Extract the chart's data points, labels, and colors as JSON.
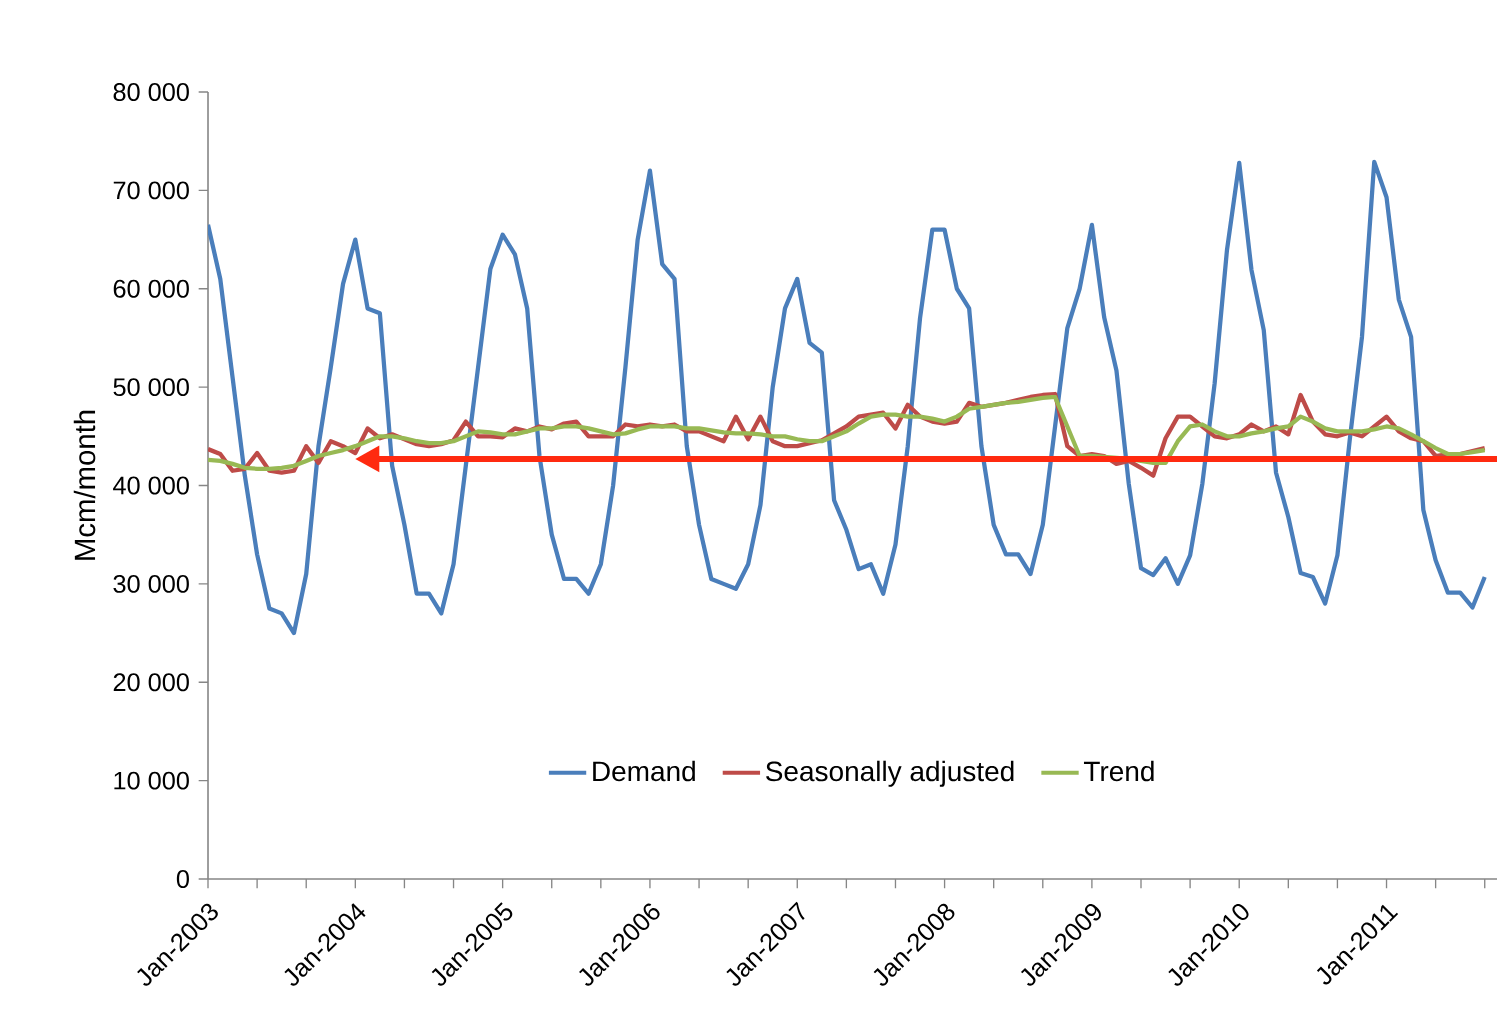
{
  "chart_data": {
    "type": "line",
    "ylabel": "Mcm/month",
    "x": [
      "2003-01",
      "2003-02",
      "2003-03",
      "2003-04",
      "2003-05",
      "2003-06",
      "2003-07",
      "2003-08",
      "2003-09",
      "2003-10",
      "2003-11",
      "2003-12",
      "2004-01",
      "2004-02",
      "2004-03",
      "2004-04",
      "2004-05",
      "2004-06",
      "2004-07",
      "2004-08",
      "2004-09",
      "2004-10",
      "2004-11",
      "2004-12",
      "2005-01",
      "2005-02",
      "2005-03",
      "2005-04",
      "2005-05",
      "2005-06",
      "2005-07",
      "2005-08",
      "2005-09",
      "2005-10",
      "2005-11",
      "2005-12",
      "2006-01",
      "2006-02",
      "2006-03",
      "2006-04",
      "2006-05",
      "2006-06",
      "2006-07",
      "2006-08",
      "2006-09",
      "2006-10",
      "2006-11",
      "2006-12",
      "2007-01",
      "2007-02",
      "2007-03",
      "2007-04",
      "2007-05",
      "2007-06",
      "2007-07",
      "2007-08",
      "2007-09",
      "2007-10",
      "2007-11",
      "2007-12",
      "2008-01",
      "2008-02",
      "2008-03",
      "2008-04",
      "2008-05",
      "2008-06",
      "2008-07",
      "2008-08",
      "2008-09",
      "2008-10",
      "2008-11",
      "2008-12",
      "2009-01",
      "2009-02",
      "2009-03",
      "2009-04",
      "2009-05",
      "2009-06",
      "2009-07",
      "2009-08",
      "2009-09",
      "2009-10",
      "2009-11",
      "2009-12",
      "2010-01",
      "2010-02",
      "2010-03",
      "2010-04",
      "2010-05",
      "2010-06",
      "2010-07",
      "2010-08",
      "2010-09",
      "2010-10",
      "2010-11",
      "2010-12",
      "2011-01",
      "2011-02",
      "2011-03",
      "2011-04",
      "2011-05",
      "2011-06",
      "2011-07",
      "2011-08",
      "2011-09"
    ],
    "series": [
      {
        "name": "Demand",
        "color": "#4a7ebb",
        "values": [
          66500,
          61000,
          51000,
          41000,
          33000,
          27500,
          27000,
          25000,
          31000,
          44000,
          52000,
          60500,
          65000,
          58000,
          57500,
          42000,
          36000,
          29000,
          29000,
          27000,
          32000,
          42000,
          52000,
          62000,
          65500,
          63500,
          58000,
          43000,
          35000,
          30500,
          30500,
          29000,
          32000,
          40000,
          52000,
          65000,
          72000,
          62500,
          61000,
          44000,
          36000,
          30500,
          30000,
          29500,
          32000,
          38000,
          50000,
          58000,
          61000,
          54500,
          53500,
          38500,
          35500,
          31500,
          32000,
          29000,
          34000,
          44000,
          57000,
          66000,
          66000,
          60000,
          58000,
          44000,
          36000,
          33000,
          33000,
          31000,
          36000,
          46000,
          56000,
          60000,
          66500,
          57100,
          51700,
          40200,
          31600,
          30900,
          32600,
          30000,
          32900,
          40200,
          50400,
          63900,
          72800,
          61900,
          55800,
          41300,
          36800,
          31100,
          30700,
          28000,
          32900,
          44600,
          55100,
          72900,
          69300,
          58900,
          55100,
          37500,
          32400,
          29100,
          29100,
          27600,
          30700
        ]
      },
      {
        "name": "Seasonally adjusted",
        "color": "#be4b48",
        "values": [
          43700,
          43200,
          41500,
          41700,
          43300,
          41500,
          41300,
          41500,
          44000,
          42300,
          44500,
          44000,
          43300,
          45800,
          44800,
          45200,
          44700,
          44200,
          44000,
          44200,
          44600,
          46500,
          45000,
          45000,
          44900,
          45800,
          45500,
          46000,
          45700,
          46300,
          46500,
          45000,
          45000,
          45000,
          46200,
          46000,
          46200,
          46000,
          46200,
          45500,
          45500,
          45000,
          44500,
          47000,
          44700,
          47000,
          44500,
          44000,
          44000,
          44300,
          44600,
          45300,
          46000,
          47000,
          47200,
          47400,
          45800,
          48200,
          47000,
          46500,
          46300,
          46500,
          48400,
          48000,
          48200,
          48400,
          48700,
          49000,
          49200,
          49300,
          44000,
          43000,
          43200,
          43000,
          42200,
          42500,
          41800,
          41000,
          44800,
          47000,
          47000,
          46000,
          45000,
          44800,
          45200,
          46200,
          45500,
          46000,
          45200,
          49200,
          46500,
          45200,
          45000,
          45400,
          45000,
          46000,
          47000,
          45500,
          44800,
          44500,
          43000,
          43200,
          43200,
          43500,
          43800
        ]
      },
      {
        "name": "Trend",
        "color": "#98b954",
        "values": [
          42600,
          42500,
          42200,
          41800,
          41700,
          41700,
          41800,
          42000,
          42500,
          43000,
          43300,
          43600,
          44000,
          44500,
          45000,
          45000,
          44800,
          44500,
          44300,
          44300,
          44500,
          45000,
          45500,
          45400,
          45200,
          45200,
          45500,
          45800,
          45800,
          46000,
          46000,
          45800,
          45500,
          45200,
          45300,
          45700,
          46000,
          46000,
          46000,
          45800,
          45800,
          45600,
          45400,
          45300,
          45300,
          45200,
          45000,
          45000,
          44700,
          44500,
          44500,
          45000,
          45500,
          46300,
          47000,
          47200,
          47200,
          47000,
          47000,
          46800,
          46500,
          47000,
          47800,
          48000,
          48200,
          48400,
          48500,
          48700,
          48900,
          49000,
          46000,
          43000,
          43000,
          42900,
          42800,
          42700,
          42500,
          42300,
          42300,
          44500,
          46000,
          46200,
          45500,
          45000,
          45000,
          45300,
          45500,
          45800,
          46000,
          47000,
          46500,
          45800,
          45500,
          45500,
          45500,
          45700,
          46000,
          45800,
          45200,
          44500,
          43800,
          43200,
          43200,
          43400,
          43600
        ]
      }
    ],
    "xlim": [
      "2003-01",
      "2011-10"
    ],
    "xticks": [
      {
        "value": "2003-01",
        "label": "Jan-2003"
      },
      {
        "value": "2003-05",
        "label": null
      },
      {
        "value": "2003-09",
        "label": null
      },
      {
        "value": "2004-01",
        "label": "Jan-2004"
      },
      {
        "value": "2004-05",
        "label": null
      },
      {
        "value": "2004-09",
        "label": null
      },
      {
        "value": "2005-01",
        "label": "Jan-2005"
      },
      {
        "value": "2005-05",
        "label": null
      },
      {
        "value": "2005-09",
        "label": null
      },
      {
        "value": "2006-01",
        "label": "Jan-2006"
      },
      {
        "value": "2006-05",
        "label": null
      },
      {
        "value": "2006-09",
        "label": null
      },
      {
        "value": "2007-01",
        "label": "Jan-2007"
      },
      {
        "value": "2007-05",
        "label": null
      },
      {
        "value": "2007-09",
        "label": null
      },
      {
        "value": "2008-01",
        "label": "Jan-2008"
      },
      {
        "value": "2008-05",
        "label": null
      },
      {
        "value": "2008-09",
        "label": null
      },
      {
        "value": "2009-01",
        "label": "Jan-2009"
      },
      {
        "value": "2009-05",
        "label": null
      },
      {
        "value": "2009-09",
        "label": null
      },
      {
        "value": "2010-01",
        "label": "Jan-2010"
      },
      {
        "value": "2010-05",
        "label": null
      },
      {
        "value": "2010-09",
        "label": null
      },
      {
        "value": "2011-01",
        "label": "Jan-2011"
      },
      {
        "value": "2011-05",
        "label": null
      },
      {
        "value": "2011-09",
        "label": null
      }
    ],
    "ylim": [
      0,
      80000
    ],
    "yticks": [
      {
        "value": 0,
        "label": "0"
      },
      {
        "value": 10000,
        "label": "10 000"
      },
      {
        "value": 20000,
        "label": "20 000"
      },
      {
        "value": 30000,
        "label": "30 000"
      },
      {
        "value": 40000,
        "label": "40 000"
      },
      {
        "value": 50000,
        "label": "50 000"
      },
      {
        "value": 60000,
        "label": "60 000"
      },
      {
        "value": 70000,
        "label": "70 000"
      },
      {
        "value": 80000,
        "label": "80 000"
      }
    ],
    "ref_lines": [
      {
        "axis": "y",
        "value": 42700,
        "color": "#ff2a10"
      }
    ],
    "legend": "bottom",
    "grid": false,
    "marker": "none",
    "line_style": "solid"
  }
}
